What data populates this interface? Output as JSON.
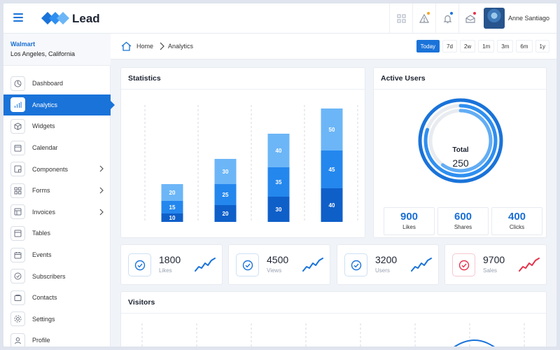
{
  "header": {
    "brand": "Lead",
    "user_name": "Anne Santiago",
    "icons": [
      "apps-grid-icon",
      "alert-triangle-icon",
      "bell-icon",
      "mail-icon"
    ],
    "badge_colors": {
      "alert": "#f5a623",
      "bell": "#1a73d9",
      "mail": "#e5334b"
    }
  },
  "sidebar": {
    "company_name": "Walmart",
    "company_location": "Los Angeles, California",
    "items": [
      {
        "label": "Dashboard",
        "icon": "dashboard-icon"
      },
      {
        "label": "Analytics",
        "icon": "analytics-icon",
        "active": true
      },
      {
        "label": "Widgets",
        "icon": "widgets-icon"
      },
      {
        "label": "Calendar",
        "icon": "calendar-icon"
      },
      {
        "label": "Components",
        "icon": "components-icon",
        "has_submenu": true
      },
      {
        "label": "Forms",
        "icon": "forms-icon",
        "has_submenu": true
      },
      {
        "label": "Invoices",
        "icon": "invoices-icon",
        "has_submenu": true
      },
      {
        "label": "Tables",
        "icon": "tables-icon"
      },
      {
        "label": "Events",
        "icon": "events-icon"
      },
      {
        "label": "Subscribers",
        "icon": "subscribers-icon"
      },
      {
        "label": "Contacts",
        "icon": "contacts-icon"
      },
      {
        "label": "Settings",
        "icon": "settings-icon"
      },
      {
        "label": "Profile",
        "icon": "profile-icon"
      }
    ]
  },
  "breadcrumb": {
    "home": "Home",
    "current": "Analytics",
    "ranges": [
      "Today",
      "7d",
      "2w",
      "1m",
      "3m",
      "6m",
      "1y"
    ],
    "active_range": "Today"
  },
  "statistics": {
    "title": "Statistics",
    "chart_data": {
      "type": "bar",
      "stacked": true,
      "categories": [
        "",
        "",
        "",
        ""
      ],
      "series": [
        {
          "values": [
            10,
            20,
            30,
            40
          ],
          "color": "#0f5fc9"
        },
        {
          "values": [
            15,
            25,
            35,
            45
          ],
          "color": "#2487ee"
        },
        {
          "values": [
            20,
            30,
            40,
            50
          ],
          "color": "#6cb6f7"
        }
      ],
      "grid": "vertical-dashed"
    }
  },
  "active_users": {
    "title": "Active Users",
    "total_label": "Total",
    "total_value": "250",
    "rings": [
      {
        "fraction": 1.0,
        "color": "#1a73d9"
      },
      {
        "fraction": 0.8,
        "color": "#2f8ff0"
      },
      {
        "fraction": 0.6,
        "color": "#62adf5"
      }
    ],
    "stats": [
      {
        "value": "900",
        "label": "Likes"
      },
      {
        "value": "600",
        "label": "Shares"
      },
      {
        "value": "400",
        "label": "Clicks"
      }
    ]
  },
  "kpis": [
    {
      "value": "1800",
      "label": "Likes",
      "color": "#1a73d9",
      "icon": "check-circle-icon"
    },
    {
      "value": "4500",
      "label": "Views",
      "color": "#1a73d9",
      "icon": "check-circle-icon"
    },
    {
      "value": "3200",
      "label": "Users",
      "color": "#1a73d9",
      "icon": "check-circle-icon"
    },
    {
      "value": "9700",
      "label": "Sales",
      "color": "#e5334b",
      "icon": "check-circle-icon"
    }
  ],
  "visitors": {
    "title": "Visitors"
  }
}
